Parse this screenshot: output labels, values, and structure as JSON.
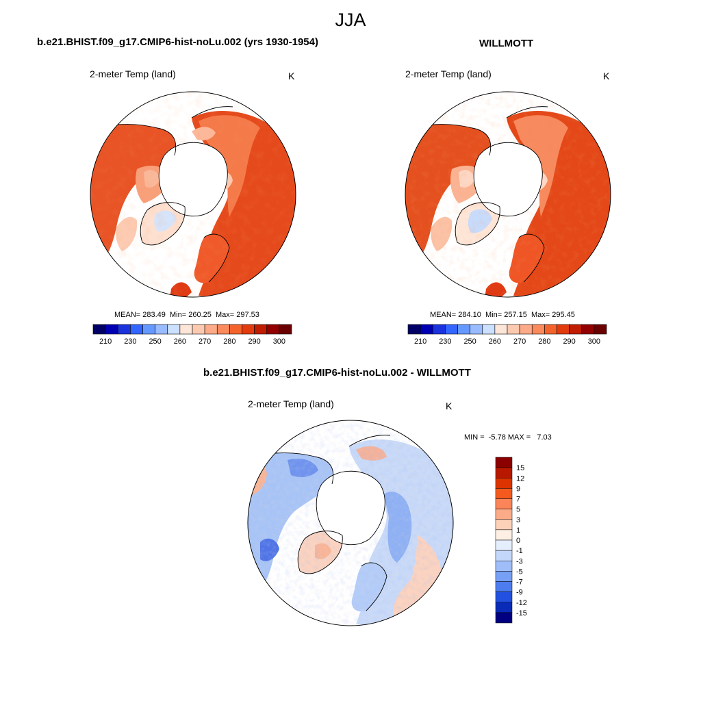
{
  "figure": {
    "title": "JJA"
  },
  "panels": [
    {
      "id": "model",
      "title": "b.e21.BHIST.f09_g17.CMIP6-hist-noLu.002 (yrs 1930-1954)",
      "variable": "2-meter Temp (land)",
      "units": "K",
      "stats": "MEAN= 283.49  Min= 260.25  Max= 297.53",
      "mean": 283.49,
      "min": 260.25,
      "max": 297.53
    },
    {
      "id": "obs",
      "title": "WILLMOTT",
      "variable": "2-meter Temp (land)",
      "units": "K",
      "stats": "MEAN= 284.10  Min= 257.15  Max= 295.45",
      "mean": 284.1,
      "min": 257.15,
      "max": 295.45
    },
    {
      "id": "diff",
      "title": "b.e21.BHIST.f09_g17.CMIP6-hist-noLu.002 - WILLMOTT",
      "variable": "2-meter Temp (land)",
      "units": "K",
      "stats": "MIN =  -5.78 MAX =   7.03",
      "min": -5.78,
      "max": 7.03
    }
  ],
  "colorbar_abs": {
    "labels": [
      "210",
      "230",
      "250",
      "260",
      "270",
      "280",
      "290",
      "300"
    ],
    "colors": [
      "#000066",
      "#0000b3",
      "#1a33dd",
      "#3366ff",
      "#6699ff",
      "#99bbff",
      "#cce0ff",
      "#fde6d8",
      "#fccab0",
      "#fcaa88",
      "#fb8a5c",
      "#f4632b",
      "#e23b0e",
      "#c01d02",
      "#920000",
      "#6b0000"
    ]
  },
  "colorbar_diff": {
    "labels": [
      "15",
      "12",
      "9",
      "7",
      "5",
      "3",
      "1",
      "0",
      "-1",
      "-3",
      "-5",
      "-7",
      "-9",
      "-12",
      "-15"
    ],
    "colors": [
      "#8b0000",
      "#b81800",
      "#dc3300",
      "#f45a1e",
      "#fb8458",
      "#fcab88",
      "#fdd0b8",
      "#fdefe4",
      "#e4eefc",
      "#c3d7fb",
      "#9fbdf9",
      "#769ff5",
      "#4d7cf0",
      "#2250e0",
      "#0a2ab8",
      "#000080"
    ]
  }
}
